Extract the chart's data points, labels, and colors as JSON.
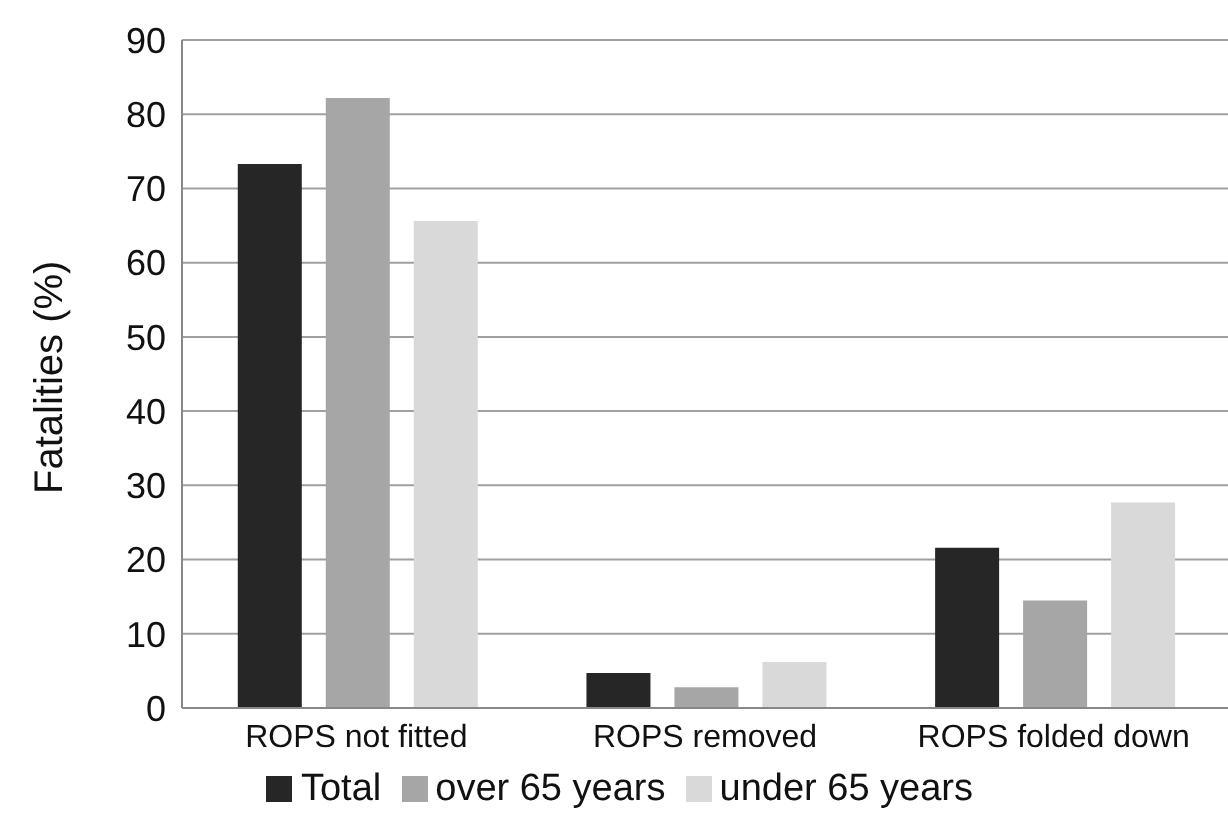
{
  "chart_data": {
    "type": "bar",
    "ylabel": "Fatalities (%)",
    "categories": [
      "ROPS not fitted",
      "ROPS removed",
      "ROPS folded down"
    ],
    "series": [
      {
        "name": "Total",
        "color": "#262626",
        "values": [
          73.3,
          4.7,
          21.6
        ]
      },
      {
        "name": "over 65 years",
        "color": "#a6a6a6",
        "values": [
          82.2,
          2.8,
          14.5
        ]
      },
      {
        "name": "under 65 years",
        "color": "#d9d9d9",
        "values": [
          65.6,
          6.2,
          27.7
        ]
      }
    ],
    "ylim": [
      0,
      90
    ],
    "yticks": [
      0,
      10,
      20,
      30,
      40,
      50,
      60,
      70,
      80,
      90
    ],
    "grid": "y",
    "legend": "bottom"
  }
}
